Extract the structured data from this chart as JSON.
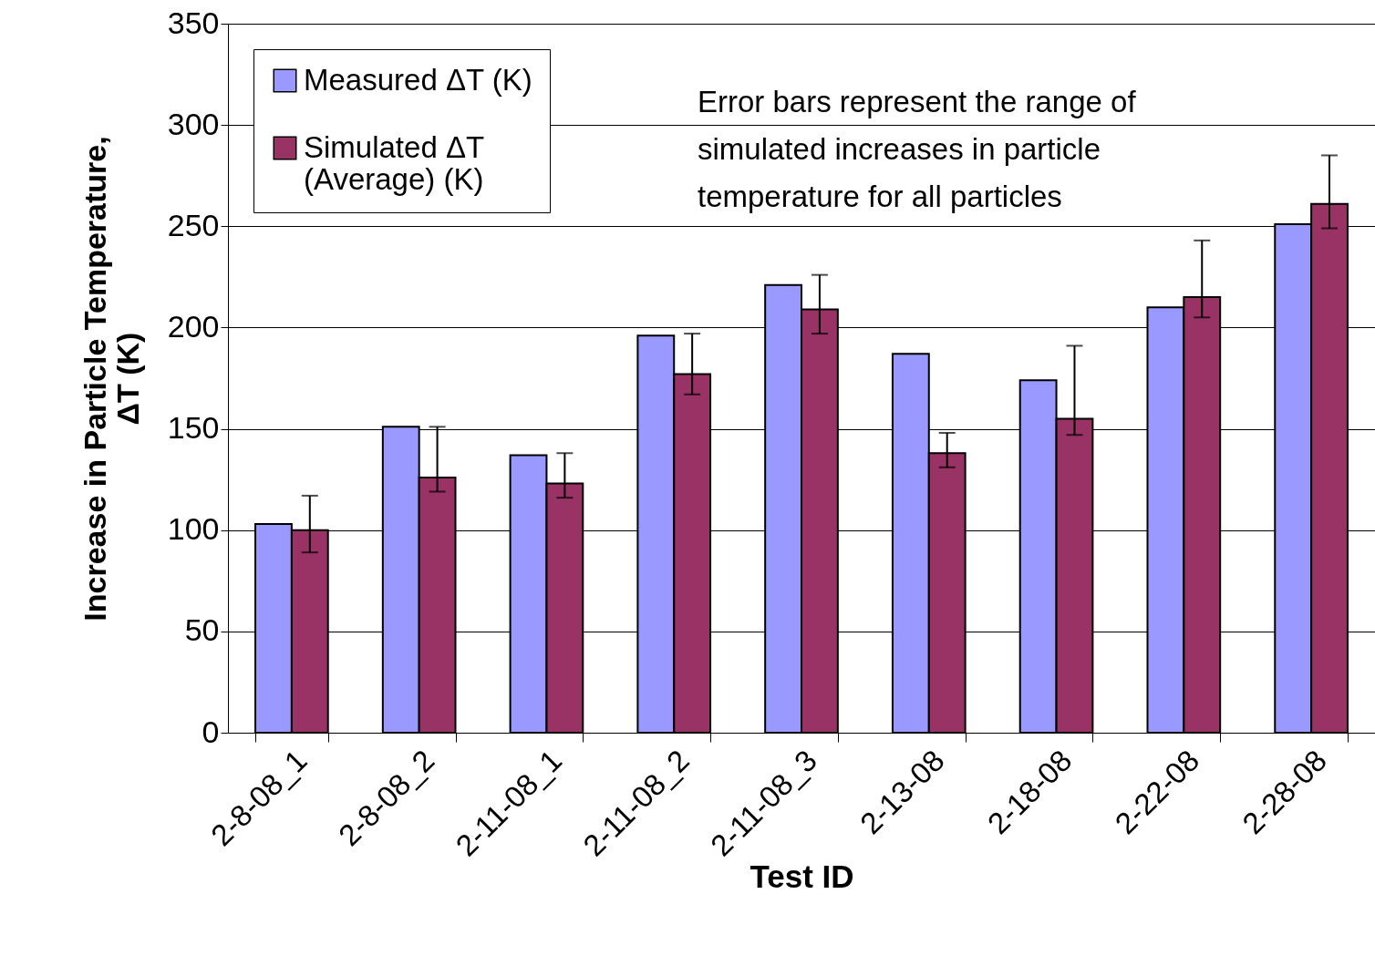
{
  "chart_data": {
    "type": "bar",
    "xlabel": "Test ID",
    "ylabel": "Increase in Particle Temperature, ΔT (K)",
    "categories": [
      "2-8-08_1",
      "2-8-08_2",
      "2-11-08_1",
      "2-11-08_2",
      "2-11-08_3",
      "2-13-08",
      "2-18-08",
      "2-22-08",
      "2-28-08"
    ],
    "series": [
      {
        "name": "Measured ΔT (K)",
        "color": "#9999ff",
        "values": [
          103,
          151,
          137,
          196,
          221,
          187,
          174,
          210,
          251
        ]
      },
      {
        "name": "Simulated ΔT (Average) (K)",
        "color": "#993366",
        "values": [
          100,
          126,
          123,
          177,
          209,
          138,
          155,
          215,
          261
        ],
        "errors": [
          [
            89,
            117
          ],
          [
            119,
            151
          ],
          [
            116,
            138
          ],
          [
            167,
            197
          ],
          [
            197,
            226
          ],
          [
            131,
            148
          ],
          [
            147,
            191
          ],
          [
            205,
            243
          ],
          [
            249,
            285
          ]
        ]
      }
    ],
    "ylim": [
      0,
      350
    ],
    "yticks": [
      0,
      50,
      100,
      150,
      200,
      250,
      300,
      350
    ],
    "grid": "y",
    "legend": "top left",
    "annotations": [
      "Error bars represent the range of simulated increases in particle temperature for all particles"
    ]
  }
}
